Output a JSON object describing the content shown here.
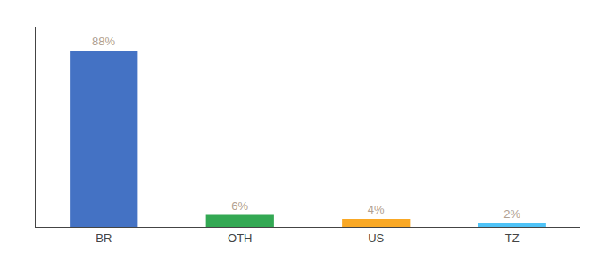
{
  "chart_data": {
    "type": "bar",
    "categories": [
      "BR",
      "OTH",
      "US",
      "TZ"
    ],
    "values": [
      88,
      6,
      4,
      2
    ],
    "value_labels": [
      "88%",
      "6%",
      "4%",
      "2%"
    ],
    "colors": [
      "#4472c4",
      "#33a853",
      "#f9a825",
      "#4fc3f7"
    ],
    "ylim": [
      0,
      100
    ],
    "grid": false,
    "data_labels": true,
    "tick_labels": "x"
  }
}
